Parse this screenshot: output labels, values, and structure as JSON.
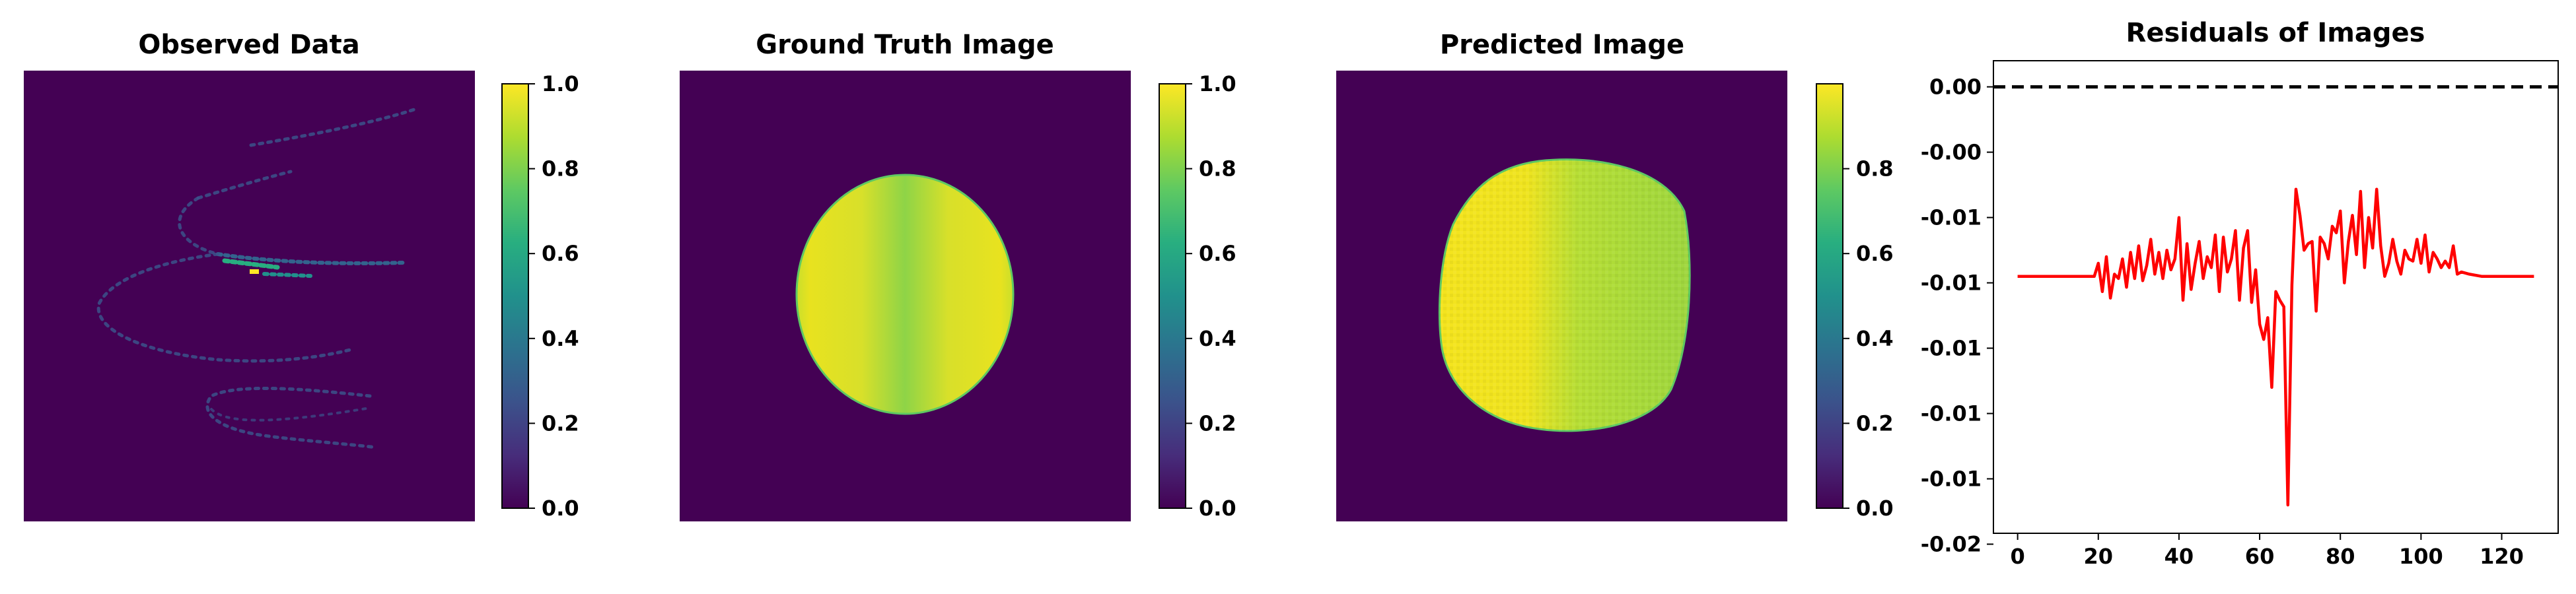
{
  "chart_data": [
    {
      "type": "heatmap",
      "title": "Observed Data",
      "colormap": "viridis",
      "colorbar": {
        "min": 0.0,
        "max": 1.0,
        "ticks": [
          "0.0",
          "0.2",
          "0.4",
          "0.6",
          "0.8",
          "1.0"
        ]
      }
    },
    {
      "type": "heatmap",
      "title": "Ground Truth Image",
      "colormap": "viridis",
      "colorbar": {
        "min": 0.0,
        "max": 1.0,
        "ticks": [
          "0.0",
          "0.2",
          "0.4",
          "0.6",
          "0.8",
          "1.0"
        ]
      }
    },
    {
      "type": "heatmap",
      "title": "Predicted Image",
      "colormap": "viridis",
      "colorbar": {
        "min": 0.0,
        "max": 1.0,
        "ticks": [
          "0.0",
          "0.2",
          "0.4",
          "0.6",
          "0.8"
        ]
      }
    },
    {
      "type": "line",
      "title": "Residuals of Images",
      "xlabel": "",
      "ylabel": "",
      "xlim": [
        -6,
        134
      ],
      "ylim": [
        -0.0205,
        0.0012
      ],
      "xticks": [
        0,
        20,
        40,
        60,
        80,
        100,
        120
      ],
      "yticks": [
        {
          "value": 0.0,
          "label": "0.00"
        },
        {
          "value": -0.003,
          "label": "-0.00"
        },
        {
          "value": -0.006,
          "label": "-0.01"
        },
        {
          "value": -0.009,
          "label": "-0.01"
        },
        {
          "value": -0.012,
          "label": "-0.01"
        },
        {
          "value": -0.015,
          "label": "-0.01"
        },
        {
          "value": -0.018,
          "label": "-0.01"
        },
        {
          "value": -0.021,
          "label": "-0.02"
        }
      ],
      "reference_line": {
        "y": 0.0,
        "style": "dashed",
        "color": "#000000"
      },
      "series": [
        {
          "color": "#ff0000",
          "x": [
            0,
            5,
            10,
            15,
            19,
            20,
            21,
            22,
            23,
            24,
            25,
            26,
            27,
            28,
            29,
            30,
            31,
            32,
            33,
            34,
            35,
            36,
            37,
            38,
            39,
            40,
            41,
            42,
            43,
            44,
            45,
            46,
            47,
            48,
            49,
            50,
            51,
            52,
            53,
            54,
            55,
            56,
            57,
            58,
            59,
            60,
            61,
            62,
            63,
            64,
            65,
            66,
            67,
            68,
            69,
            70,
            71,
            72,
            73,
            74,
            75,
            76,
            77,
            78,
            79,
            80,
            81,
            82,
            83,
            84,
            85,
            86,
            87,
            88,
            89,
            90,
            91,
            92,
            93,
            94,
            95,
            96,
            97,
            98,
            99,
            100,
            101,
            102,
            103,
            104,
            105,
            106,
            107,
            108,
            109,
            110,
            112,
            115,
            120,
            125,
            128
          ],
          "y": [
            -0.0087,
            -0.0087,
            -0.0087,
            -0.0087,
            -0.0087,
            -0.0081,
            -0.0094,
            -0.0078,
            -0.0097,
            -0.0086,
            -0.0088,
            -0.0079,
            -0.0092,
            -0.0076,
            -0.0088,
            -0.0073,
            -0.0089,
            -0.0082,
            -0.007,
            -0.0086,
            -0.0076,
            -0.0088,
            -0.0075,
            -0.0084,
            -0.0079,
            -0.006,
            -0.0098,
            -0.0072,
            -0.0093,
            -0.0081,
            -0.0071,
            -0.0088,
            -0.0078,
            -0.0083,
            -0.0068,
            -0.0094,
            -0.0069,
            -0.0085,
            -0.0079,
            -0.0066,
            -0.0098,
            -0.0074,
            -0.0066,
            -0.0099,
            -0.0084,
            -0.0109,
            -0.0116,
            -0.0106,
            -0.0138,
            -0.0094,
            -0.0098,
            -0.0101,
            -0.0192,
            -0.0091,
            -0.0047,
            -0.0059,
            -0.0075,
            -0.0072,
            -0.0071,
            -0.0103,
            -0.0069,
            -0.0072,
            -0.0079,
            -0.0064,
            -0.0067,
            -0.0057,
            -0.009,
            -0.0071,
            -0.0059,
            -0.0077,
            -0.0048,
            -0.0083,
            -0.006,
            -0.0074,
            -0.0047,
            -0.0073,
            -0.0087,
            -0.0081,
            -0.007,
            -0.008,
            -0.0086,
            -0.0075,
            -0.0079,
            -0.008,
            -0.007,
            -0.0081,
            -0.0068,
            -0.0085,
            -0.0076,
            -0.0079,
            -0.0083,
            -0.008,
            -0.0083,
            -0.0073,
            -0.0086,
            -0.0085,
            -0.0086,
            -0.0087,
            -0.0087,
            -0.0087,
            -0.0087
          ]
        }
      ]
    }
  ]
}
